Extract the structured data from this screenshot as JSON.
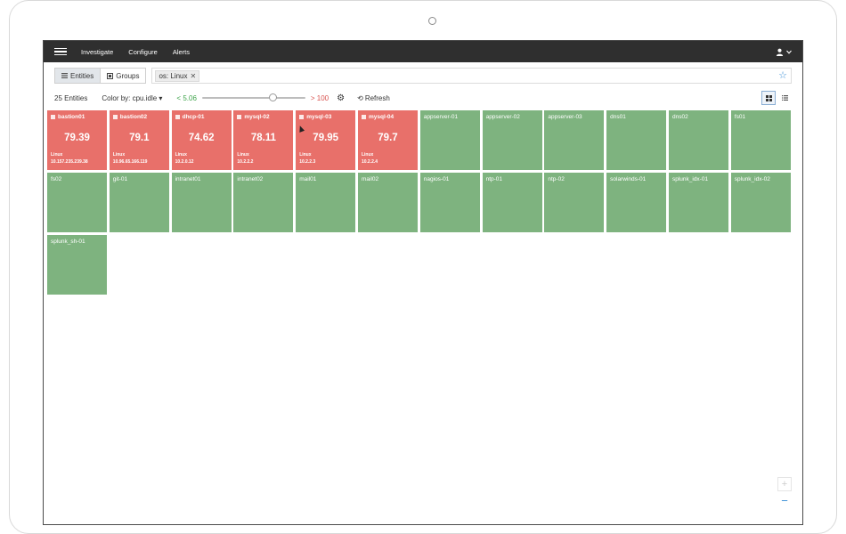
{
  "nav": {
    "items": [
      "Investigate",
      "Configure",
      "Alerts"
    ],
    "user_icon": "user-icon"
  },
  "search": {
    "tab_entities": "Entities",
    "tab_groups": "Groups",
    "filter_pill": "os: Linux",
    "remove_symbol": "✕"
  },
  "toolbar": {
    "count": "25 Entities",
    "color_by": "Color by: cpu.idle",
    "threshold_low": "< 5.06",
    "threshold_high": "> 100",
    "slider_value_fraction": 0.7,
    "refresh": "Refresh"
  },
  "colors": {
    "alert": "#e8706a",
    "ok": "#7eb37f",
    "low": "#3ea34a",
    "high": "#d9534f"
  },
  "entities": [
    {
      "name": "bastion01",
      "metric": "79.39",
      "os": "Linux",
      "ip": "10.157.235.239.38",
      "status": "red"
    },
    {
      "name": "bastion02",
      "metric": "79.1",
      "os": "Linux",
      "ip": "10.96.65.166.119",
      "status": "red"
    },
    {
      "name": "dhcp-01",
      "metric": "74.62",
      "os": "Linux",
      "ip": "10.2.0.12",
      "status": "red"
    },
    {
      "name": "mysql-02",
      "metric": "78.11",
      "os": "Linux",
      "ip": "10.2.2.2",
      "status": "red"
    },
    {
      "name": "mysql-03",
      "metric": "79.95",
      "os": "Linux",
      "ip": "10.2.2.3",
      "status": "red"
    },
    {
      "name": "mysql-04",
      "metric": "79.7",
      "os": "Linux",
      "ip": "10.2.2.4",
      "status": "red"
    },
    {
      "name": "appserver-01",
      "status": "green"
    },
    {
      "name": "appserver-02",
      "status": "green"
    },
    {
      "name": "appserver-03",
      "status": "green"
    },
    {
      "name": "dns01",
      "status": "green"
    },
    {
      "name": "dns02",
      "status": "green"
    },
    {
      "name": "fs01",
      "status": "green"
    },
    {
      "name": "fs02",
      "status": "green"
    },
    {
      "name": "git-01",
      "status": "green"
    },
    {
      "name": "intranet01",
      "status": "green"
    },
    {
      "name": "intranet02",
      "status": "green"
    },
    {
      "name": "mail01",
      "status": "green"
    },
    {
      "name": "mail02",
      "status": "green"
    },
    {
      "name": "nagios-01",
      "status": "green"
    },
    {
      "name": "ntp-01",
      "status": "green"
    },
    {
      "name": "ntp-02",
      "status": "green"
    },
    {
      "name": "solarwinds-01",
      "status": "green"
    },
    {
      "name": "splunk_idx-01",
      "status": "green"
    },
    {
      "name": "splunk_idx-02",
      "status": "green"
    },
    {
      "name": "splunk_sh-01",
      "status": "green"
    }
  ],
  "zoom": {
    "plus": "+",
    "minus": "−"
  }
}
